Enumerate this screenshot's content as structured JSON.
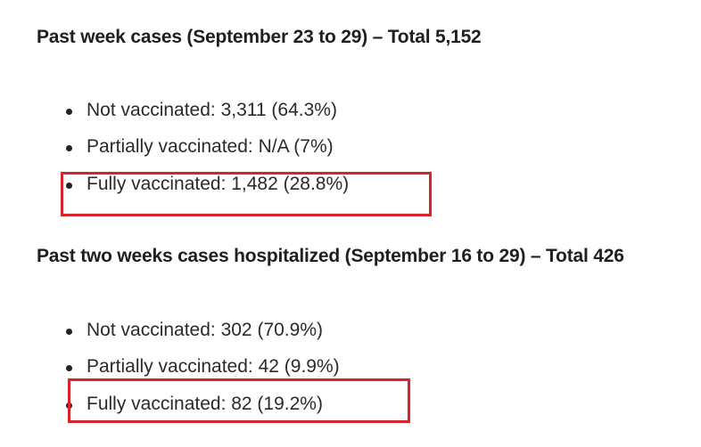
{
  "section1": {
    "heading": "Past week cases (September 23 to 29) – Total 5,152",
    "items": [
      "Not vaccinated: 3,311 (64.3%)",
      "Partially vaccinated: N/A (7%)",
      "Fully vaccinated: 1,482 (28.8%)"
    ]
  },
  "section2": {
    "heading": "Past two weeks cases hospitalized (September 16 to 29) – Total 426",
    "items": [
      "Not vaccinated: 302 (70.9%)",
      "Partially vaccinated: 42 (9.9%)",
      "Fully vaccinated: 82 (19.2%)"
    ]
  },
  "highlight_color": "#d9232b"
}
